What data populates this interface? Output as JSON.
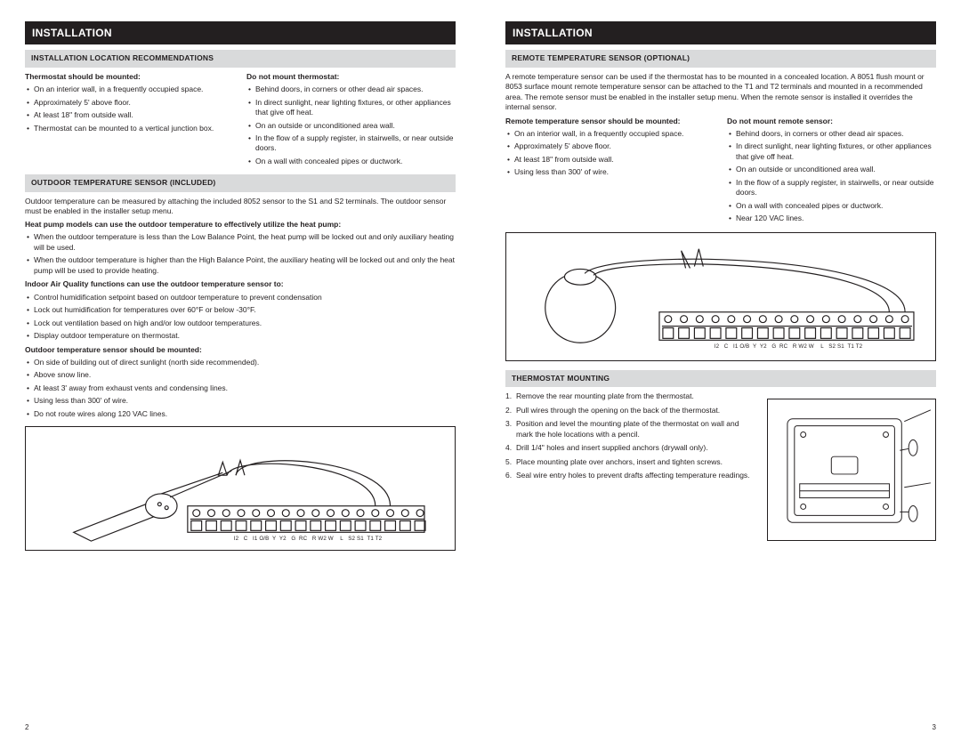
{
  "colors": {
    "headerBg": "#231f20",
    "sectionBg": "#d9dadb",
    "text": "#231f20",
    "pageBg": "#ffffff",
    "stroke": "#231f20"
  },
  "terminalLabels": "I2   C   I1 O/B  Y  Y2   G  RC   R W2 W    L   S2 S1  T1 T2",
  "left": {
    "header": "INSTALLATION",
    "pageNum": "2",
    "sec1": {
      "title": "INSTALLATION LOCATION RECOMMENDATIONS",
      "colA": {
        "head": "Thermostat should be mounted:",
        "items": [
          "On an interior wall, in a frequently occupied space.",
          "Approximately 5' above floor.",
          "At least 18\" from outside wall.",
          "Thermostat can be mounted to a vertical junction box."
        ]
      },
      "colB": {
        "head": "Do not mount thermostat:",
        "items": [
          "Behind doors, in corners or other dead air spaces.",
          "In direct sunlight, near lighting fixtures, or other appliances that give off heat.",
          "On an outside or unconditioned area wall.",
          "In the flow of a supply register, in stairwells, or near outside doors.",
          "On a wall with concealed pipes or ductwork."
        ]
      }
    },
    "sec2": {
      "title": "OUTDOOR TEMPERATURE SENSOR (INCLUDED)",
      "intro": "Outdoor temperature can be measured by attaching the included 8052 sensor to the S1 and S2 terminals. The outdoor sensor must be enabled in the installer setup menu.",
      "h1": "Heat pump models can use the outdoor temperature to effectively utilize the heat pump:",
      "l1": [
        "When the outdoor temperature is less than the Low Balance Point, the heat pump will be locked out and only auxiliary heating will be used.",
        "When the outdoor temperature is higher than the High Balance Point, the auxiliary heating will be locked out and only the heat pump will be used to provide heating."
      ],
      "h2": "Indoor Air Quality functions can use the outdoor temperature sensor to:",
      "l2": [
        "Control humidification setpoint based on outdoor temperature to prevent condensation",
        "Lock out humidification for temperatures over 60°F or below -30°F.",
        "Lock out ventilation based on high and/or low outdoor temperatures.",
        "Display outdoor temperature on thermostat."
      ],
      "h3": "Outdoor temperature sensor should be mounted:",
      "l3": [
        "On side of building out of direct sunlight (north side recommended).",
        "Above snow line.",
        "At least 3' away from exhaust vents and condensing lines.",
        "Using less than 300' of wire.",
        "Do not route wires along 120 VAC lines."
      ]
    }
  },
  "right": {
    "header": "INSTALLATION",
    "pageNum": "3",
    "sec1": {
      "title": "REMOTE TEMPERATURE SENSOR (OPTIONAL)",
      "intro": "A remote temperature sensor can be used if the thermostat has to be mounted in a concealed location. A 8051 flush mount or 8053 surface mount remote temperature sensor can be attached to the T1 and T2 terminals and mounted in a recommended area. The remote sensor must be enabled in the installer setup menu. When the remote sensor is installed it overrides the internal sensor.",
      "colA": {
        "head": "Remote temperature sensor should be mounted:",
        "items": [
          "On an interior wall, in a frequently occupied space.",
          "Approximately 5' above floor.",
          "At least 18\" from outside wall.",
          "Using less than 300' of wire."
        ]
      },
      "colB": {
        "head": "Do not mount remote sensor:",
        "items": [
          "Behind doors, in corners or other dead air spaces.",
          "In direct sunlight, near lighting fixtures, or other appliances that give off heat.",
          "On an outside or unconditioned area wall.",
          "In the flow of a supply register, in stairwells, or near outside doors.",
          "On a wall with concealed pipes or ductwork.",
          "Near 120 VAC lines."
        ]
      }
    },
    "sec2": {
      "title": "THERMOSTAT MOUNTING",
      "steps": [
        "Remove the rear mounting plate from the thermostat.",
        "Pull wires through the opening on the back of the thermostat.",
        "Position and level the mounting plate of the thermostat on wall and mark the hole locations with a pencil.",
        "Drill 1/4\" holes and insert supplied anchors (drywall only).",
        "Place mounting plate over anchors, insert and tighten screws.",
        "Seal wire entry holes to prevent drafts affecting temperature readings."
      ]
    }
  }
}
